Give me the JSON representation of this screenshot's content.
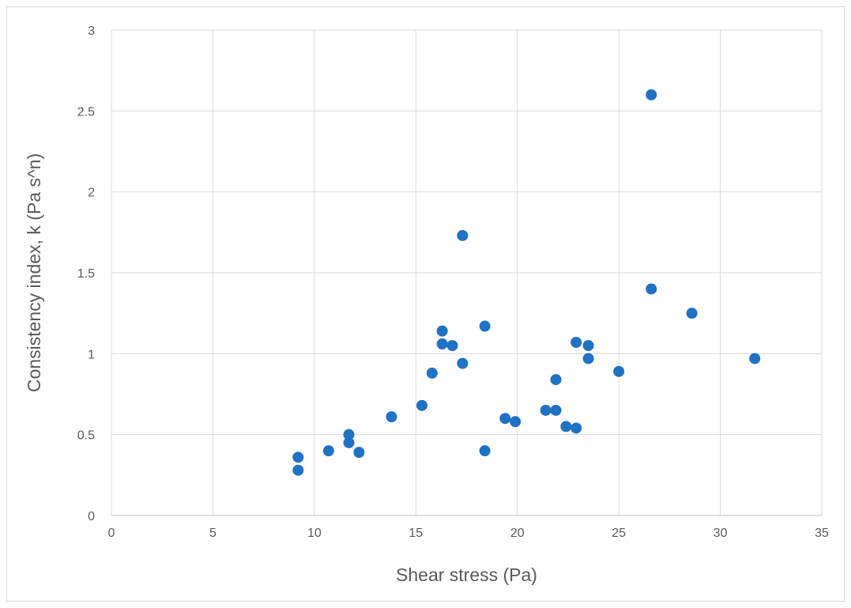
{
  "chart_data": {
    "type": "scatter",
    "title": "",
    "xlabel": "Shear stress (Pa)",
    "ylabel": "Consistency index, k (Pa s^n)",
    "xlim": [
      0,
      35
    ],
    "ylim": [
      0,
      3
    ],
    "x_ticks": [
      0,
      5,
      10,
      15,
      20,
      25,
      30,
      35
    ],
    "y_ticks": [
      0,
      0.5,
      1,
      1.5,
      2,
      2.5,
      3
    ],
    "x_tick_labels": [
      "0",
      "5",
      "10",
      "15",
      "20",
      "25",
      "30",
      "35"
    ],
    "y_tick_labels": [
      "0",
      "0.5",
      "1",
      "1.5",
      "2",
      "2.5",
      "3"
    ],
    "grid": true,
    "legend": "none",
    "marker_color": "#1f72c4",
    "series": [
      {
        "points": [
          {
            "x": 9.2,
            "y": 0.36
          },
          {
            "x": 9.2,
            "y": 0.28
          },
          {
            "x": 10.7,
            "y": 0.4
          },
          {
            "x": 11.7,
            "y": 0.5
          },
          {
            "x": 11.7,
            "y": 0.45
          },
          {
            "x": 12.2,
            "y": 0.39
          },
          {
            "x": 13.8,
            "y": 0.61
          },
          {
            "x": 15.3,
            "y": 0.68
          },
          {
            "x": 15.8,
            "y": 0.88
          },
          {
            "x": 16.3,
            "y": 1.14
          },
          {
            "x": 16.3,
            "y": 1.06
          },
          {
            "x": 16.8,
            "y": 1.05
          },
          {
            "x": 17.3,
            "y": 0.94
          },
          {
            "x": 17.3,
            "y": 1.73
          },
          {
            "x": 18.4,
            "y": 1.17
          },
          {
            "x": 18.4,
            "y": 0.4
          },
          {
            "x": 19.4,
            "y": 0.6
          },
          {
            "x": 19.9,
            "y": 0.58
          },
          {
            "x": 21.4,
            "y": 0.65
          },
          {
            "x": 21.9,
            "y": 0.65
          },
          {
            "x": 21.9,
            "y": 0.84
          },
          {
            "x": 22.4,
            "y": 0.55
          },
          {
            "x": 22.9,
            "y": 0.54
          },
          {
            "x": 22.9,
            "y": 1.07
          },
          {
            "x": 23.5,
            "y": 1.05
          },
          {
            "x": 23.5,
            "y": 0.97
          },
          {
            "x": 25.0,
            "y": 0.89
          },
          {
            "x": 26.6,
            "y": 2.6
          },
          {
            "x": 26.6,
            "y": 1.4
          },
          {
            "x": 28.6,
            "y": 1.25
          },
          {
            "x": 31.7,
            "y": 0.97
          }
        ]
      }
    ]
  }
}
